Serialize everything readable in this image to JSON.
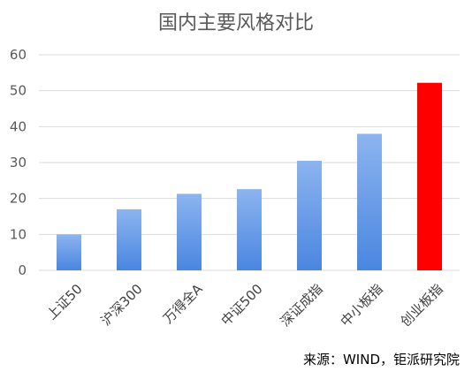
{
  "chart_data": {
    "type": "bar",
    "title": "国内主要风格对比",
    "categories": [
      "上证50",
      "沪深300",
      "万得全A",
      "中证500",
      "深证成指",
      "中小板指",
      "创业板指"
    ],
    "values": [
      10,
      17,
      21.3,
      22.6,
      30.5,
      38,
      52.2
    ],
    "ylim": [
      0,
      60
    ],
    "yticks": [
      0,
      10,
      20,
      30,
      40,
      50,
      60
    ],
    "grid": true,
    "legend": "none",
    "colors": {
      "default_bar_top": "#8cb4ef",
      "default_bar_bottom": "#4a86e0",
      "highlight_bar": "#ff0000",
      "highlight_index": 6,
      "grid": "#d9d9d9"
    }
  },
  "source_note": "来源：WIND，钜派研究院"
}
